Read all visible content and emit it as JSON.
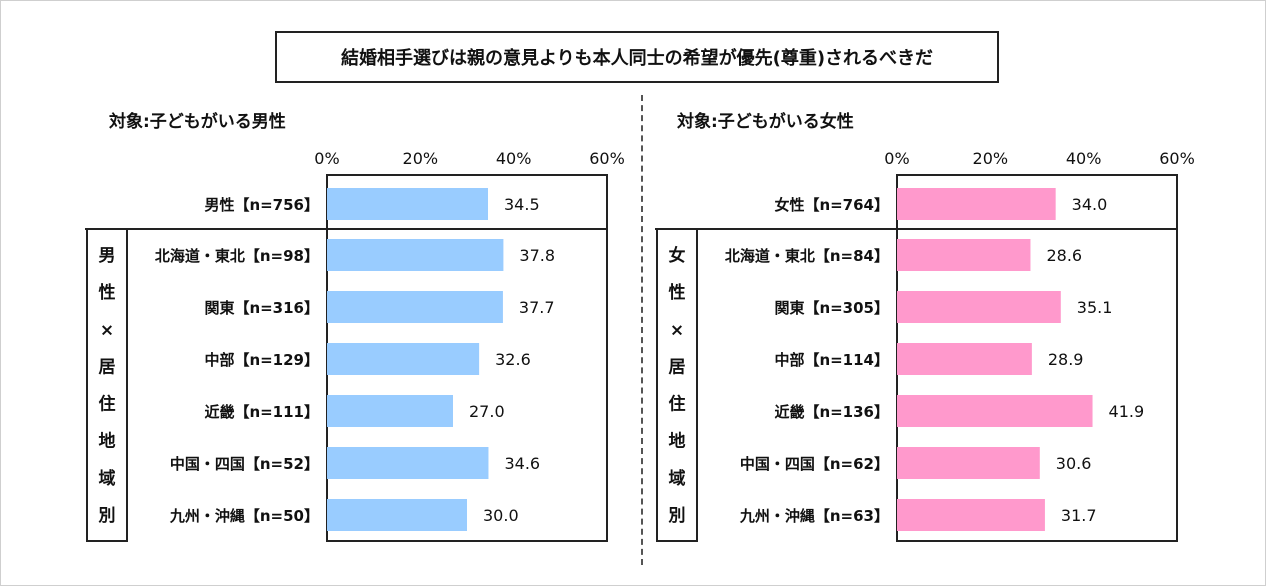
{
  "title": "結婚相手選びは親の意見よりも本人同士の希望が優先(尊重)されるべきだ",
  "chart_data": [
    {
      "type": "bar",
      "orientation": "horizontal",
      "subtitle": "対象:子どもがいる男性",
      "axis_ticks": [
        "0%",
        "20%",
        "40%",
        "60%"
      ],
      "xlim": [
        0,
        60
      ],
      "group_label": "男性×居住地域別",
      "bar_color": "#99CCFF",
      "total": {
        "label": "男性【n=756】",
        "value": 34.5,
        "value_label": "34.5"
      },
      "categories": [
        {
          "label": "北海道・東北【n=98】",
          "value": 37.8,
          "value_label": "37.8"
        },
        {
          "label": "関東【n=316】",
          "value": 37.7,
          "value_label": "37.7"
        },
        {
          "label": "中部【n=129】",
          "value": 32.6,
          "value_label": "32.6"
        },
        {
          "label": "近畿【n=111】",
          "value": 27.0,
          "value_label": "27.0"
        },
        {
          "label": "中国・四国【n=52】",
          "value": 34.6,
          "value_label": "34.6"
        },
        {
          "label": "九州・沖縄【n=50】",
          "value": 30.0,
          "value_label": "30.0"
        }
      ]
    },
    {
      "type": "bar",
      "orientation": "horizontal",
      "subtitle": "対象:子どもがいる女性",
      "axis_ticks": [
        "0%",
        "20%",
        "40%",
        "60%"
      ],
      "xlim": [
        0,
        60
      ],
      "group_label": "女性×居住地域別",
      "bar_color": "#FF99CC",
      "total": {
        "label": "女性【n=764】",
        "value": 34.0,
        "value_label": "34.0"
      },
      "categories": [
        {
          "label": "北海道・東北【n=84】",
          "value": 28.6,
          "value_label": "28.6"
        },
        {
          "label": "関東【n=305】",
          "value": 35.1,
          "value_label": "35.1"
        },
        {
          "label": "中部【n=114】",
          "value": 28.9,
          "value_label": "28.9"
        },
        {
          "label": "近畿【n=136】",
          "value": 41.9,
          "value_label": "41.9"
        },
        {
          "label": "中国・四国【n=62】",
          "value": 30.6,
          "value_label": "30.6"
        },
        {
          "label": "九州・沖縄【n=63】",
          "value": 31.7,
          "value_label": "31.7"
        }
      ]
    }
  ]
}
